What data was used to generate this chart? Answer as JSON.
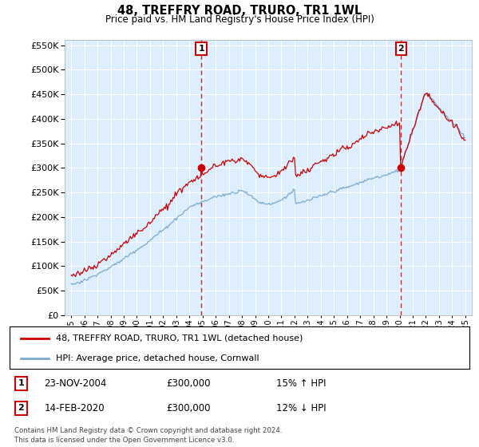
{
  "title": "48, TREFFRY ROAD, TRURO, TR1 1WL",
  "subtitle": "Price paid vs. HM Land Registry's House Price Index (HPI)",
  "legend_line1": "48, TREFFRY ROAD, TRURO, TR1 1WL (detached house)",
  "legend_line2": "HPI: Average price, detached house, Cornwall",
  "footnote": "Contains HM Land Registry data © Crown copyright and database right 2024.\nThis data is licensed under the Open Government Licence v3.0.",
  "annotation1_date": "23-NOV-2004",
  "annotation1_price": "£300,000",
  "annotation1_hpi": "15% ↑ HPI",
  "annotation2_date": "14-FEB-2020",
  "annotation2_price": "£300,000",
  "annotation2_hpi": "12% ↓ HPI",
  "sale1_year": 2004.9,
  "sale1_value": 300000,
  "sale2_year": 2020.12,
  "sale2_value": 300000,
  "price_line_color": "#cc0000",
  "hpi_line_color": "#7aabcf",
  "background_plot": "#ddeeff",
  "background_fig": "#ffffff",
  "grid_color": "#ffffff",
  "ylim_min": 0,
  "ylim_max": 560000,
  "yticks": [
    0,
    50000,
    100000,
    150000,
    200000,
    250000,
    300000,
    350000,
    400000,
    450000,
    500000,
    550000
  ],
  "xlim_min": 1994.5,
  "xlim_max": 2025.5,
  "xticks": [
    1995,
    1996,
    1997,
    1998,
    1999,
    2000,
    2001,
    2002,
    2003,
    2004,
    2005,
    2006,
    2007,
    2008,
    2009,
    2010,
    2011,
    2012,
    2013,
    2014,
    2015,
    2016,
    2017,
    2018,
    2019,
    2020,
    2021,
    2022,
    2023,
    2024,
    2025
  ]
}
